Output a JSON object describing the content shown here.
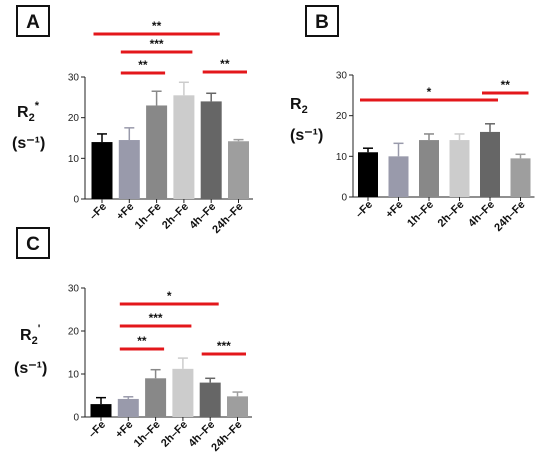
{
  "chart_data": [
    {
      "panel": "A",
      "type": "bar",
      "ylabel": "R",
      "ylabel_sub": "2",
      "ylabel_sup": "*",
      "yunit": "(s⁻¹)",
      "categories": [
        "–Fe",
        "+Fe",
        "1h–Fe",
        "2h–Fe",
        "4h–Fe",
        "24h–Fe"
      ],
      "values": [
        14,
        14.5,
        23,
        25.5,
        24,
        14.2
      ],
      "errors": [
        2,
        3,
        3.5,
        3.2,
        2,
        0.4
      ],
      "colors": [
        "#000000",
        "#999aab",
        "#888888",
        "#cccccc",
        "#666666",
        "#9e9e9e"
      ],
      "ylim": [
        0,
        30
      ],
      "yticks": [
        0,
        10,
        20,
        30
      ],
      "significance": [
        {
          "from": 0,
          "to": 4,
          "label": "**"
        },
        {
          "from": 1,
          "to": 3,
          "label": "***"
        },
        {
          "from": 1,
          "to": 2,
          "label": "**"
        },
        {
          "from": 4,
          "to": 5,
          "label": "**"
        }
      ]
    },
    {
      "panel": "B",
      "type": "bar",
      "ylabel": "R",
      "ylabel_sub": "2",
      "ylabel_sup": "",
      "yunit": "(s⁻¹)",
      "categories": [
        "–Fe",
        "+Fe",
        "1h–Fe",
        "2h–Fe",
        "4h–Fe",
        "24h–Fe"
      ],
      "values": [
        11,
        10,
        14,
        14,
        16,
        9.5
      ],
      "errors": [
        1,
        3.2,
        1.5,
        1.5,
        2,
        1
      ],
      "colors": [
        "#000000",
        "#999aab",
        "#888888",
        "#cccccc",
        "#666666",
        "#9e9e9e"
      ],
      "ylim": [
        0,
        30
      ],
      "yticks": [
        0,
        10,
        20,
        30
      ],
      "significance": [
        {
          "from": 0,
          "to": 4,
          "label": "*"
        },
        {
          "from": 4,
          "to": 5,
          "label": "**"
        }
      ]
    },
    {
      "panel": "C",
      "type": "bar",
      "ylabel": "R",
      "ylabel_sub": "2",
      "ylabel_sup": "'",
      "yunit": "(s⁻¹)",
      "categories": [
        "–Fe",
        "+Fe",
        "1h–Fe",
        "2h–Fe",
        "4h–Fe",
        "24h–Fe"
      ],
      "values": [
        3,
        4.2,
        9,
        11.2,
        8,
        4.8
      ],
      "errors": [
        1.5,
        0.5,
        2,
        2.5,
        1,
        1
      ],
      "colors": [
        "#000000",
        "#999aab",
        "#888888",
        "#cccccc",
        "#666666",
        "#9e9e9e"
      ],
      "ylim": [
        0,
        30
      ],
      "yticks": [
        0,
        10,
        20,
        30
      ],
      "significance": [
        {
          "from": 1,
          "to": 4,
          "label": "*"
        },
        {
          "from": 1,
          "to": 3,
          "label": "***"
        },
        {
          "from": 1,
          "to": 2,
          "label": "**"
        },
        {
          "from": 4,
          "to": 5,
          "label": "***"
        }
      ]
    }
  ],
  "colors": {
    "significance_line": "#e3171b",
    "axis": "#222222"
  }
}
